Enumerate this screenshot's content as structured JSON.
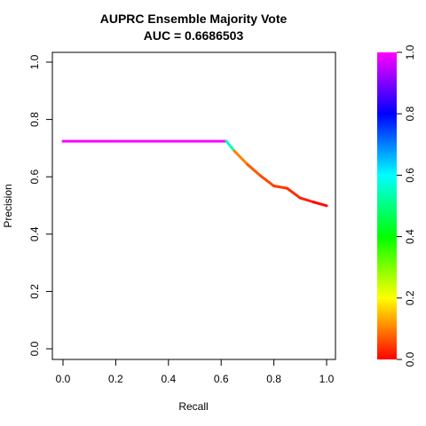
{
  "chart_data": {
    "type": "line",
    "title": "AUPRC Ensemble Majority Vote",
    "subtitle": "AUC = 0.6686503",
    "xlabel": "Recall",
    "ylabel": "Precision",
    "xlim": [
      0,
      1
    ],
    "ylim": [
      0,
      1
    ],
    "x_ticks": [
      "0.0",
      "0.2",
      "0.4",
      "0.6",
      "0.8",
      "1.0"
    ],
    "y_ticks": [
      "0.0",
      "0.2",
      "0.4",
      "0.6",
      "0.8",
      "1.0"
    ],
    "grid": false,
    "series": [
      {
        "x": [
          0.0,
          0.62,
          0.65,
          0.7,
          0.75,
          0.8,
          0.85,
          0.9,
          0.95,
          1.0
        ],
        "y": [
          0.724,
          0.724,
          0.69,
          0.643,
          0.603,
          0.568,
          0.56,
          0.526,
          0.512,
          0.499
        ],
        "color_value": [
          1.0,
          0.98,
          0.12,
          0.08,
          0.06,
          0.05,
          0.04,
          0.03,
          0.02,
          0.0
        ]
      }
    ],
    "colorbar": {
      "range": [
        0,
        1
      ],
      "ticks": [
        "0.0",
        "0.2",
        "0.4",
        "0.6",
        "0.8",
        "1.0"
      ],
      "colors": [
        "#ff0000",
        "#ffff00",
        "#00ff00",
        "#00ffff",
        "#0000ff",
        "#ff00ff"
      ]
    }
  }
}
